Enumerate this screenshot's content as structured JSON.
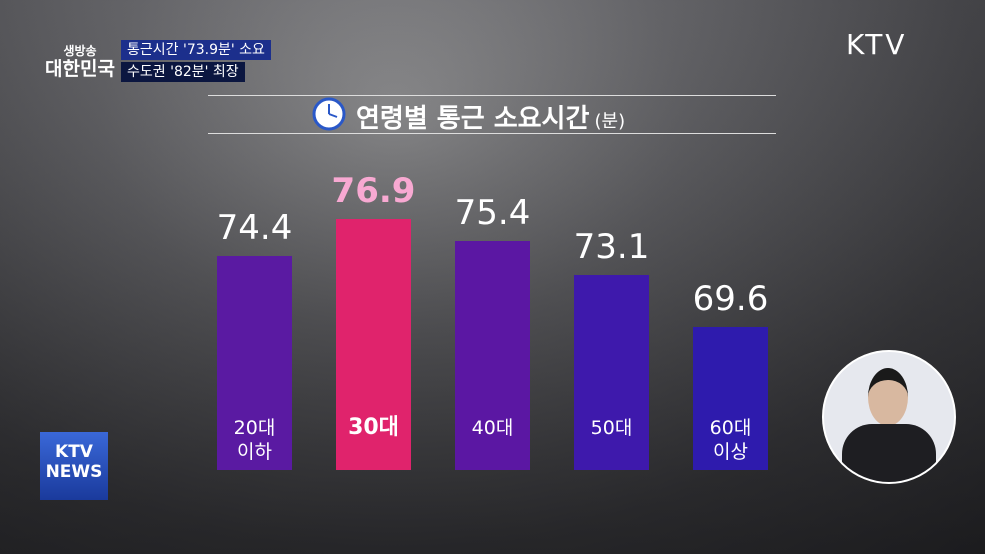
{
  "chart_data": {
    "type": "bar",
    "title": "연령별 통근 소요시간",
    "unit_note": "(분)",
    "categories": [
      "20대\n이하",
      "30대",
      "40대",
      "50대",
      "60대\n이상"
    ],
    "values": [
      74.4,
      76.9,
      75.4,
      73.1,
      69.6
    ],
    "colors": [
      "#5a1aa2",
      "#e0236c",
      "#5b17a3",
      "#3e19ac",
      "#2e1bad"
    ],
    "label_colors": [
      "#ffffff",
      "#f8a9d2",
      "#ffffff",
      "#ffffff",
      "#ffffff"
    ],
    "ylim": [
      60,
      80
    ]
  },
  "overlay": {
    "program_top": "생방송",
    "program_name": "대한민국",
    "headline_1": "통근시간 '73.9분' 소요",
    "headline_2": "수도권 '82분' 최장",
    "channel_logo": "KTV",
    "news_logo_top": "KTV",
    "news_logo_bottom": "NEWS"
  }
}
